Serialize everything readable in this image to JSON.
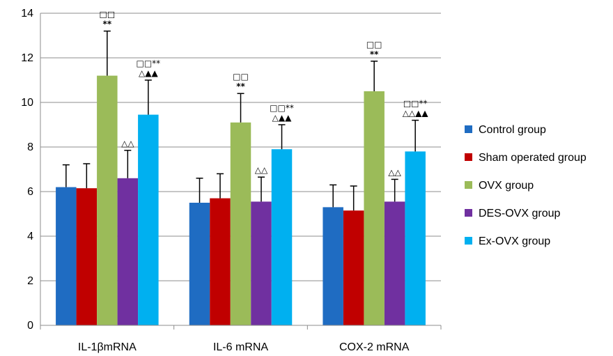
{
  "chart_data": {
    "type": "bar",
    "categories": [
      "IL-1βmRNA",
      "IL-6 mRNA",
      "COX-2 mRNA"
    ],
    "ylim": [
      0,
      14
    ],
    "yticks": [
      0,
      2,
      4,
      6,
      8,
      10,
      12,
      14
    ],
    "grid": true,
    "legend_position": "right",
    "series": [
      {
        "name": "Control group",
        "color": "#1f6cc2",
        "values": [
          6.2,
          5.5,
          5.3
        ],
        "errors": [
          1.0,
          1.1,
          1.0
        ],
        "annotations": [
          [],
          [],
          []
        ]
      },
      {
        "name": "Sham operated group",
        "color": "#c00000",
        "values": [
          6.15,
          5.7,
          5.15
        ],
        "errors": [
          1.1,
          1.1,
          1.1
        ],
        "annotations": [
          [],
          [],
          []
        ]
      },
      {
        "name": "OVX group",
        "color": "#9bbb59",
        "values": [
          11.2,
          9.1,
          10.5
        ],
        "errors": [
          2.0,
          1.3,
          1.35
        ],
        "annotations": [
          [
            "□□",
            "**"
          ],
          [
            "□□",
            "**"
          ],
          [
            "□□",
            "**"
          ]
        ]
      },
      {
        "name": "DES-OVX group",
        "color": "#7030a0",
        "values": [
          6.6,
          5.55,
          5.55
        ],
        "errors": [
          1.25,
          1.1,
          1.0
        ],
        "annotations": [
          [
            "△△"
          ],
          [
            "△△"
          ],
          [
            "△△"
          ]
        ]
      },
      {
        "name": "Ex-OVX  group",
        "color": "#00b0f0",
        "values": [
          9.45,
          7.9,
          7.8
        ],
        "errors": [
          1.55,
          1.1,
          1.4
        ],
        "annotations": [
          [
            "□□**",
            "△▲▲"
          ],
          [
            "□□**",
            "△▲▲"
          ],
          [
            "□□**",
            "△△▲▲"
          ]
        ]
      }
    ]
  }
}
